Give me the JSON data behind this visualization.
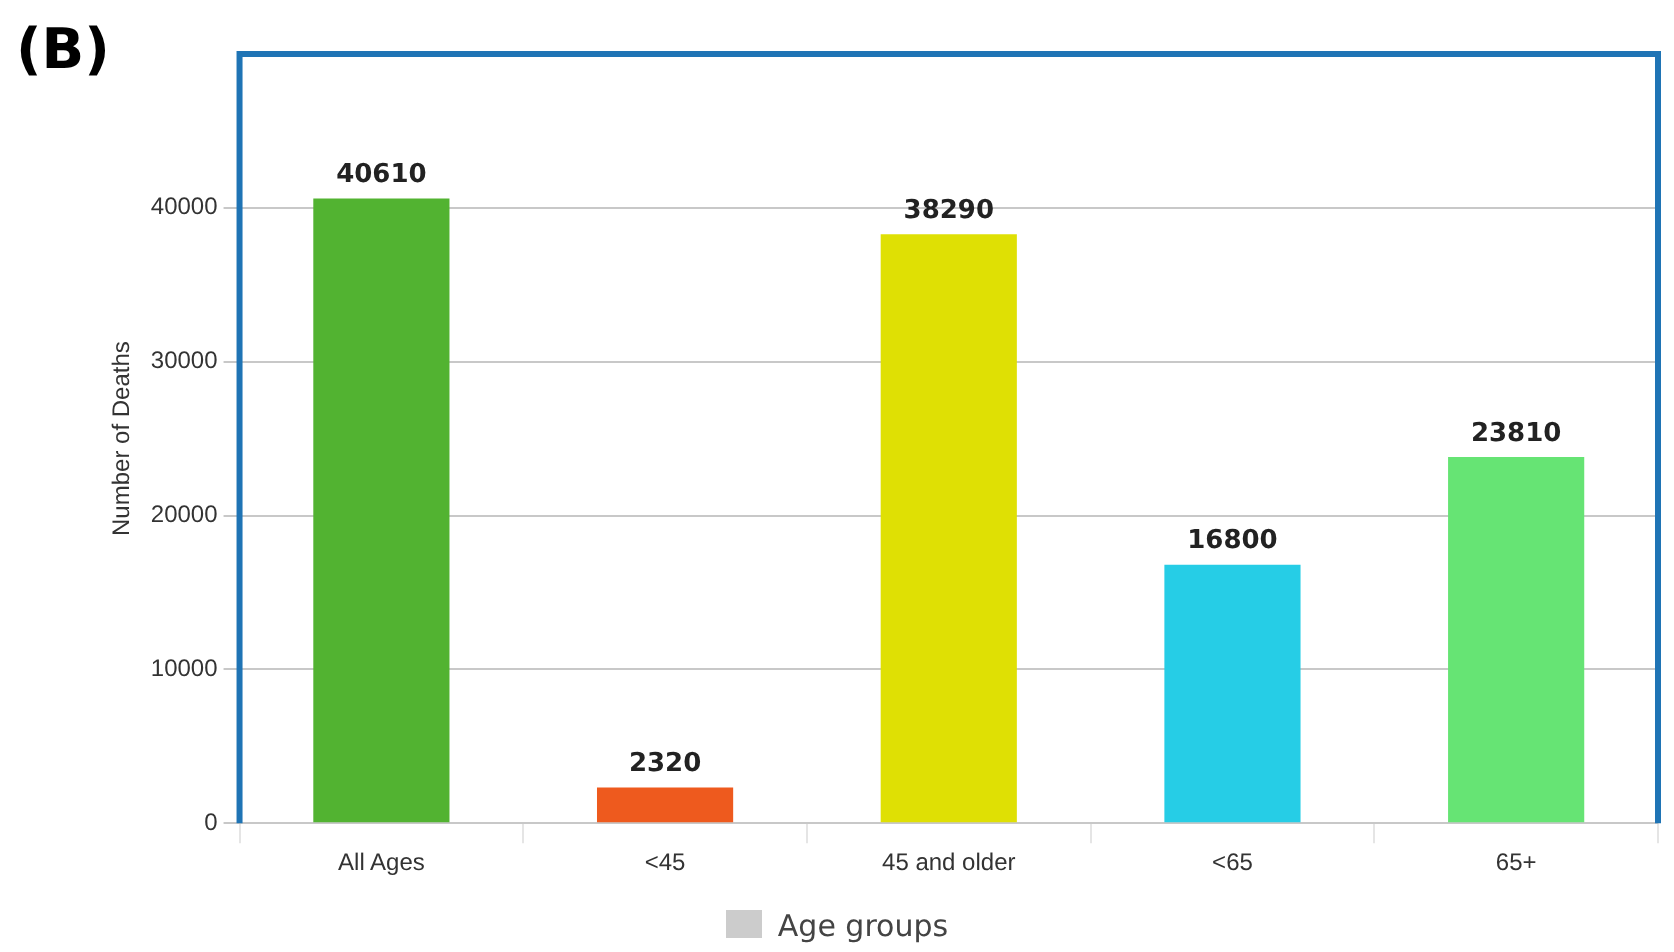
{
  "chart_data": {
    "type": "bar",
    "annotations": [
      "(B)"
    ],
    "ylabel": "Number of Deaths",
    "categories": [
      "All Ages",
      "<45",
      "45 and older",
      "<65",
      "65+"
    ],
    "series": [
      {
        "name": "Age groups",
        "color": "#cccccc",
        "colors": [
          "#52b331",
          "#ee5a1e",
          "#dfe004",
          "#26cde6",
          "#66e474"
        ],
        "values": [
          40610,
          2320,
          38290,
          16800,
          23810
        ]
      }
    ],
    "ylim": [
      0,
      50000
    ],
    "yticks": [
      0,
      10000,
      20000,
      30000,
      40000
    ],
    "grid": "y",
    "legend": "bottom",
    "data_labels": true
  }
}
